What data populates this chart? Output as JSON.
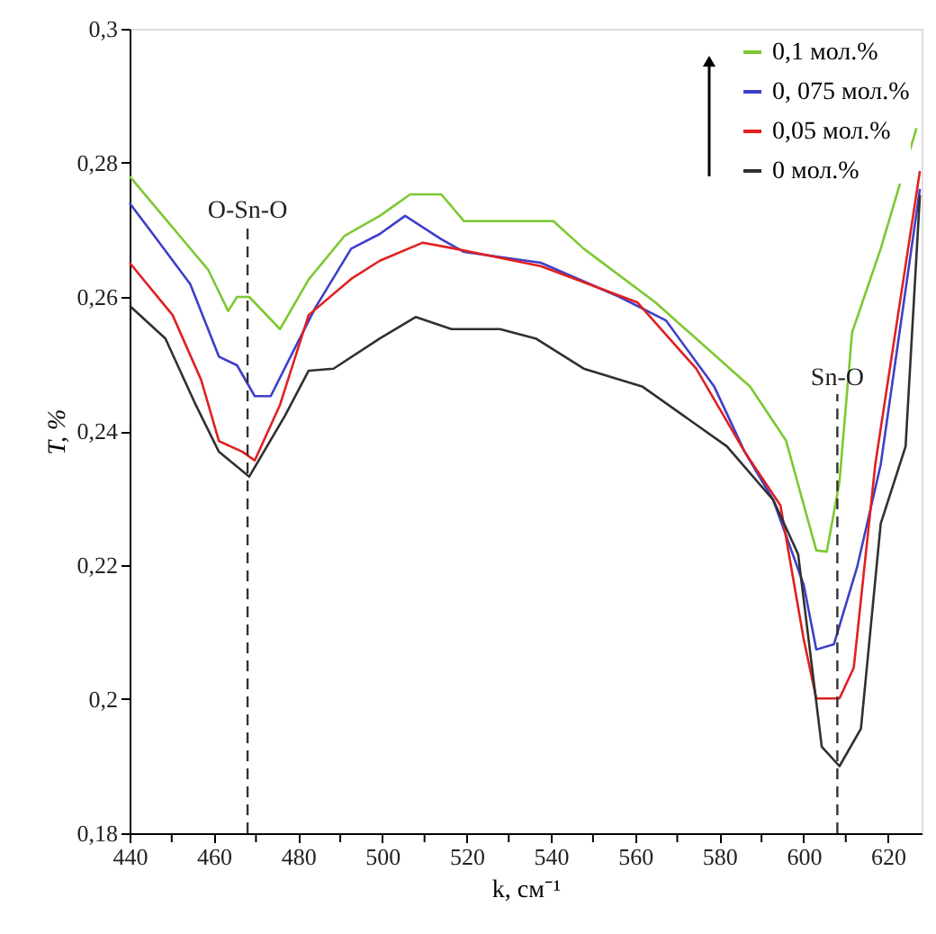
{
  "chart_data": {
    "type": "line",
    "xlabel": "k, см⁻¹",
    "ylabel": "T, %",
    "xlim": [
      440,
      628
    ],
    "ylim": [
      0.18,
      0.3
    ],
    "xticks": [
      440,
      {
        "value": 450,
        "label": null
      },
      460,
      {
        "value": 470,
        "label": null
      },
      480,
      {
        "value": 490,
        "label": null
      },
      500,
      {
        "value": 510,
        "label": null
      },
      520,
      {
        "value": 530,
        "label": null
      },
      540,
      {
        "value": 550,
        "label": null
      },
      560,
      {
        "value": 570,
        "label": null
      },
      580,
      {
        "value": 590,
        "label": null
      },
      600,
      {
        "value": 610,
        "label": null
      },
      620
    ],
    "yticks": [
      {
        "value": 0.18,
        "label": "0,18"
      },
      {
        "value": 0.2,
        "label": "0,2"
      },
      {
        "value": 0.22,
        "label": "0,22"
      },
      {
        "value": 0.24,
        "label": "0,24"
      },
      {
        "value": 0.26,
        "label": "0,26"
      },
      {
        "value": 0.28,
        "label": "0,28"
      },
      {
        "value": 0.3,
        "label": "0,3"
      }
    ],
    "grid": false,
    "legend": "top right",
    "marker": "none",
    "line_style": "solid",
    "series": [
      {
        "name": "0,1 мол.%",
        "color": "#7dc832",
        "x": [
          440,
          451.5,
          458.7,
          463.4,
          465.5,
          468.4,
          475.7,
          482.5,
          491,
          499.4,
          506.6,
          514,
          519.4,
          540.6,
          547.8,
          564.8,
          587.3,
          595.8,
          603,
          605.5,
          608.5,
          611.5,
          618.3,
          626.8
        ],
        "values": [
          0.278,
          0.2694,
          0.264,
          0.2579,
          0.26,
          0.26,
          0.2552,
          0.2626,
          0.2691,
          0.2721,
          0.2753,
          0.2753,
          0.2713,
          0.2713,
          0.2672,
          0.2592,
          0.2466,
          0.2386,
          0.2222,
          0.222,
          0.2324,
          0.2547,
          0.2672,
          0.2852
        ]
      },
      {
        "name": "0, 075 мол.%",
        "color": "#3f3fc8",
        "x": [
          440,
          446,
          454.4,
          461.2,
          465.5,
          469.7,
          473.5,
          478.2,
          484.1,
          492.6,
          499.4,
          505.4,
          514,
          519.4,
          537.6,
          556.3,
          567.3,
          578.8,
          586,
          592.8,
          600,
          603,
          607.2,
          612.7,
          618.3,
          627.6
        ],
        "values": [
          0.274,
          0.269,
          0.2619,
          0.2511,
          0.2498,
          0.2452,
          0.2452,
          0.2511,
          0.2584,
          0.2672,
          0.2694,
          0.2721,
          0.2686,
          0.2667,
          0.2651,
          0.26,
          0.2565,
          0.2466,
          0.2369,
          0.2297,
          0.2171,
          0.2074,
          0.2082,
          0.2197,
          0.235,
          0.2761
        ]
      },
      {
        "name": "0,05 мол.%",
        "color": "#e02020",
        "x": [
          440,
          450.2,
          457,
          461.2,
          466.8,
          469.7,
          475.7,
          482.5,
          492.6,
          499.4,
          509.6,
          516.4,
          537.6,
          560.5,
          574.5,
          586,
          594.5,
          600,
          603,
          608.5,
          611.9,
          617,
          627.6
        ],
        "values": [
          0.2651,
          0.2573,
          0.2476,
          0.2385,
          0.2369,
          0.2356,
          0.2439,
          0.2573,
          0.2627,
          0.2654,
          0.2681,
          0.2673,
          0.2646,
          0.2592,
          0.2493,
          0.2369,
          0.2289,
          0.209,
          0.2001,
          0.2001,
          0.2047,
          0.235,
          0.2788
        ]
      },
      {
        "name": "0 мол.%",
        "color": "#303030",
        "x": [
          440,
          448.5,
          455.7,
          461.2,
          468.4,
          476.9,
          482.5,
          488.4,
          499.4,
          507.9,
          516.4,
          527.9,
          536.4,
          547.8,
          561.8,
          581.8,
          592.8,
          598.7,
          604.3,
          608.5,
          613.6,
          618.3,
          624.2,
          627.6
        ],
        "values": [
          0.2587,
          0.2538,
          0.2439,
          0.2369,
          0.2332,
          0.2423,
          0.249,
          0.2493,
          0.2538,
          0.257,
          0.2552,
          0.2552,
          0.2538,
          0.2493,
          0.2466,
          0.2377,
          0.2297,
          0.2216,
          0.1929,
          0.19,
          0.1956,
          0.2262,
          0.2377,
          0.2752
        ]
      }
    ],
    "ref_lines": [
      {
        "axis": "x",
        "value": 468,
        "color": "#333333",
        "line_style": "dashed"
      },
      {
        "axis": "x",
        "value": 608,
        "color": "#333333",
        "line_style": "dashed"
      }
    ],
    "annotations": [
      {
        "text": "O-Sn-O",
        "x": 468,
        "y": 0.2705
      },
      {
        "text": "Sn-O",
        "x": 608,
        "y": 0.2455
      }
    ]
  }
}
